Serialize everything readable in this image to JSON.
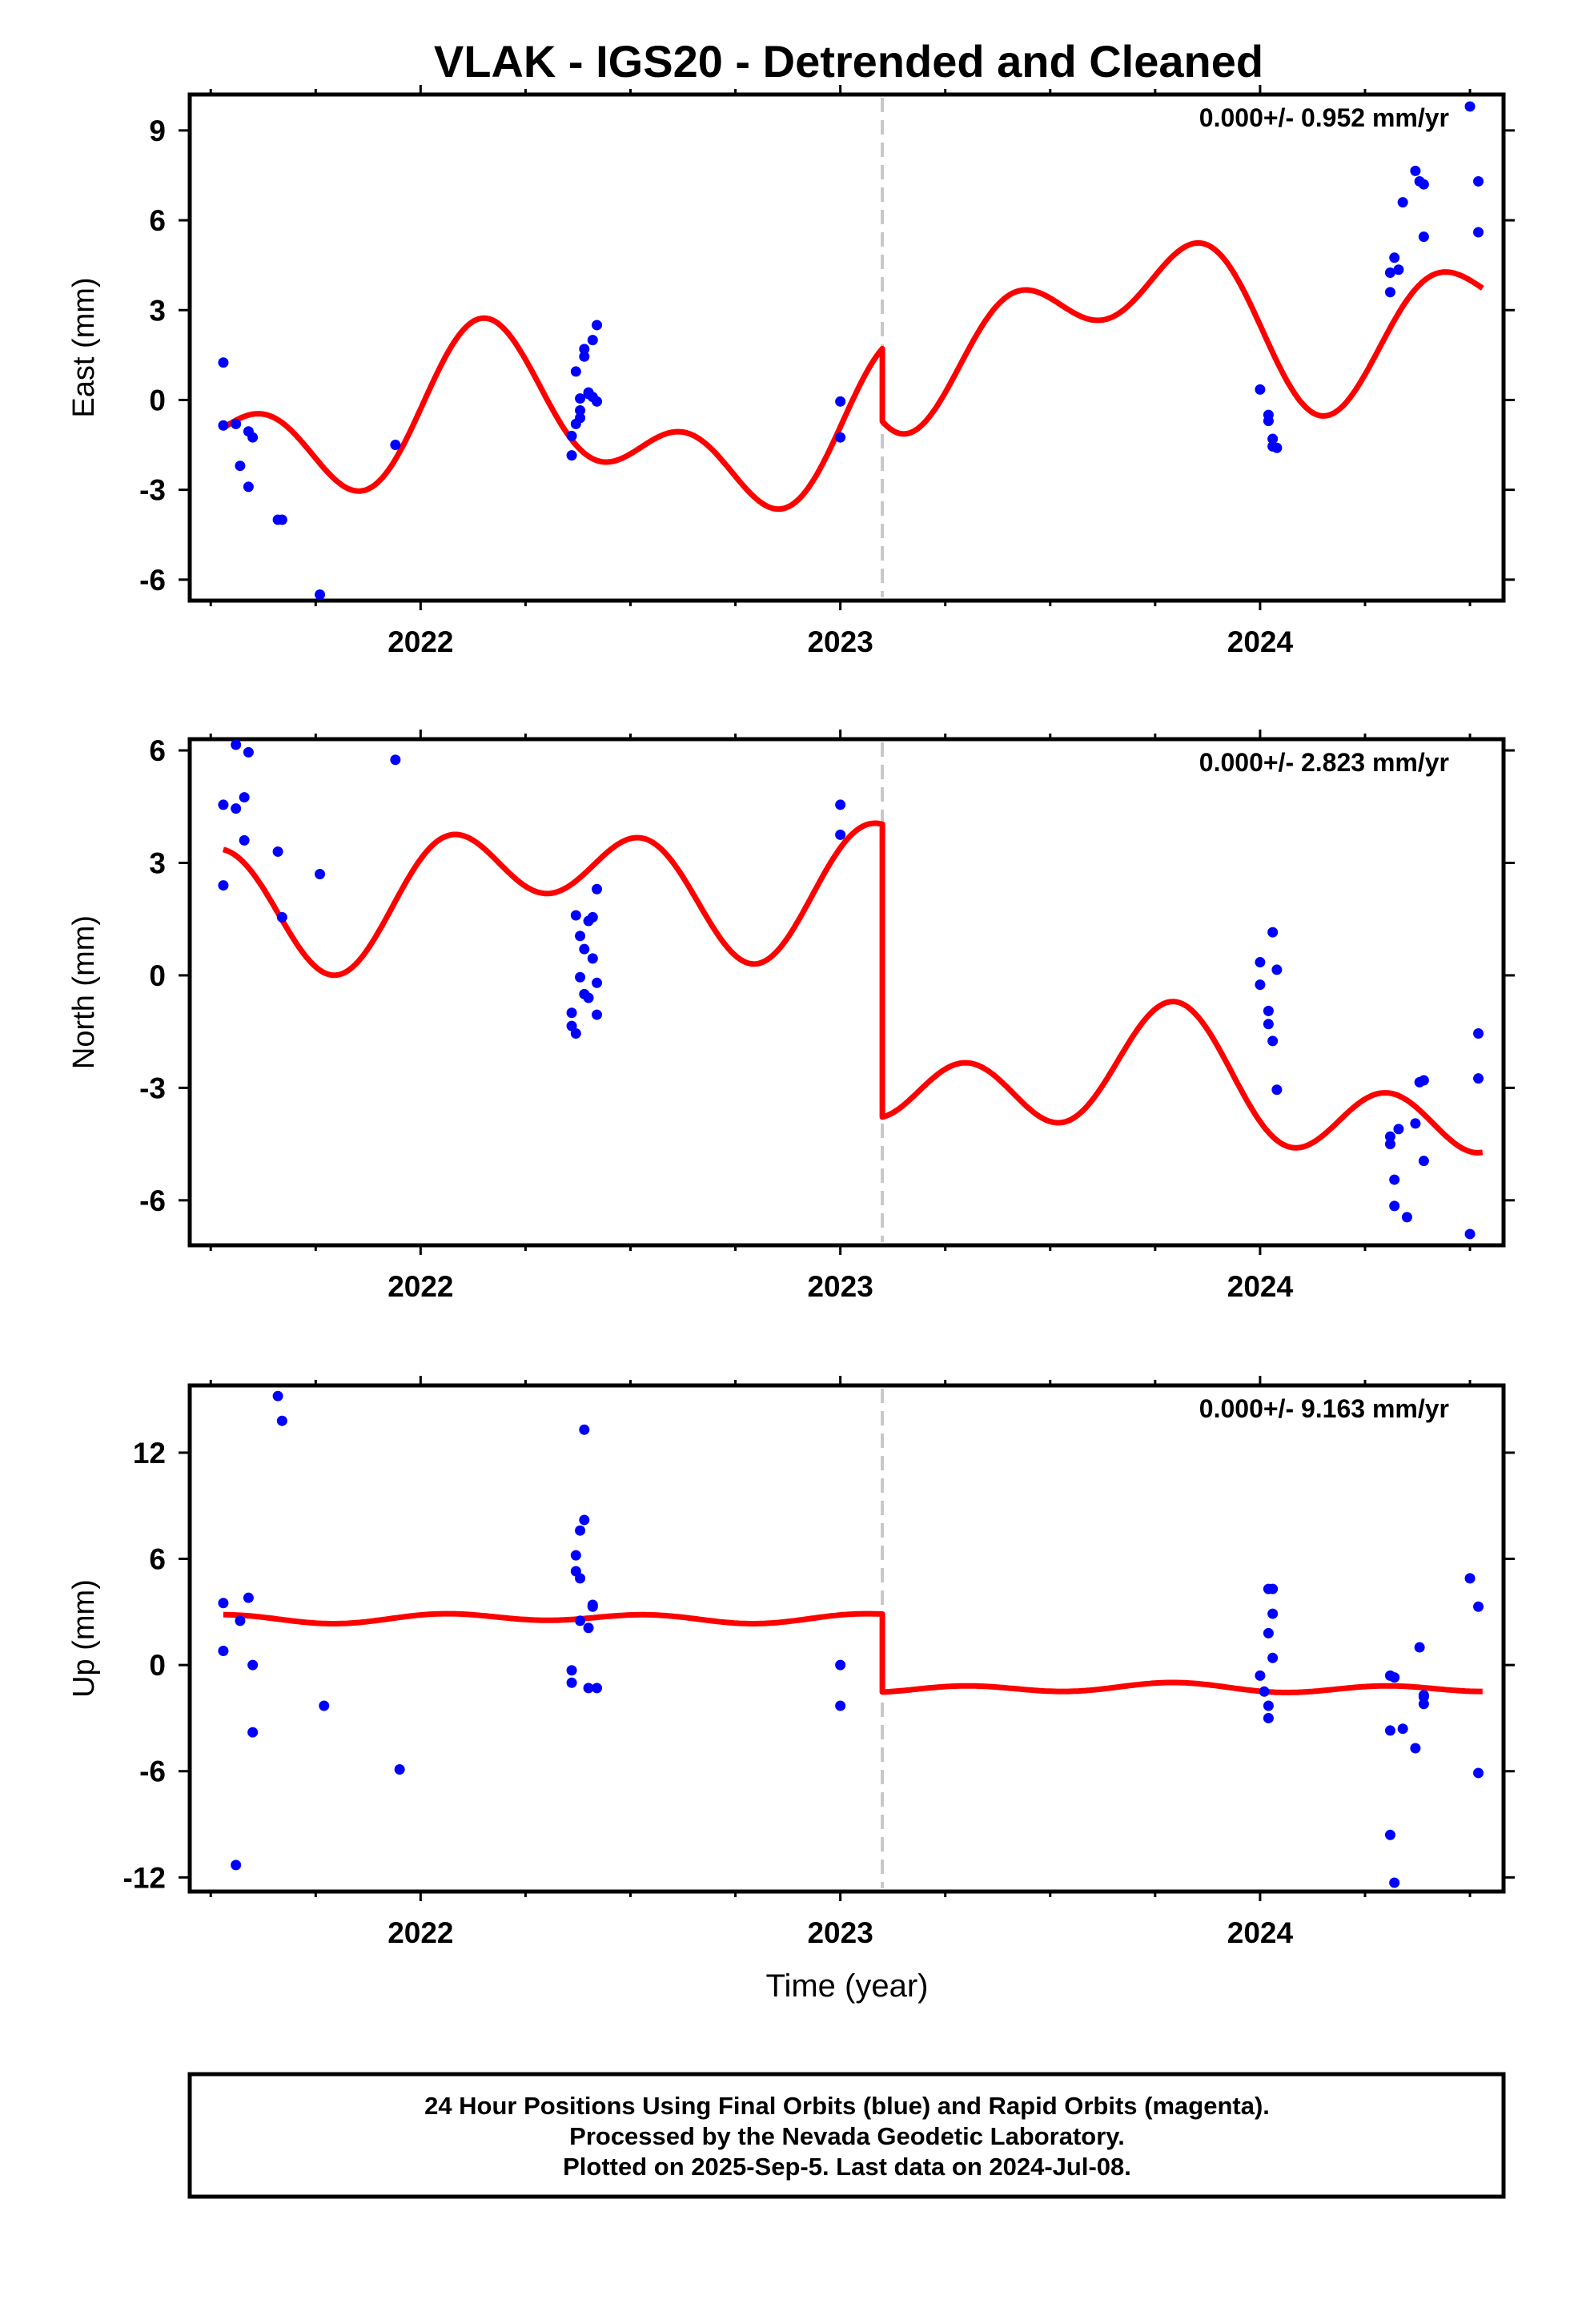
{
  "chart_data": {
    "title": "VLAK - IGS20 - Detrended and Cleaned",
    "xlabel": "Time (year)",
    "type": "scatter",
    "x_tick_labels": [
      "2022",
      "2023",
      "2024"
    ],
    "x_tick_values": [
      2022,
      2023,
      2024
    ],
    "xlim": [
      2021.45,
      2024.58
    ],
    "offset_epoch": 2023.1,
    "colors": {
      "points": "#0000ff",
      "model": "#ff0000",
      "offset_line": "#c8c8c8"
    },
    "panels": [
      {
        "name": "east",
        "ylabel": "East (mm)",
        "ylim": [
          -6.7,
          10.2
        ],
        "yticks": [
          9,
          6,
          3,
          0,
          -3,
          -6
        ],
        "rate": "0.000+/- 0.952 mm/yr",
        "points": [
          [
            2021.53,
            1.25
          ],
          [
            2021.53,
            -0.85
          ],
          [
            2021.56,
            -0.8
          ],
          [
            2021.57,
            -2.2
          ],
          [
            2021.59,
            -2.9
          ],
          [
            2021.59,
            -1.05
          ],
          [
            2021.6,
            -1.25
          ],
          [
            2021.66,
            -4.0
          ],
          [
            2021.67,
            -4.0
          ],
          [
            2021.76,
            -6.5
          ],
          [
            2021.94,
            -1.5
          ],
          [
            2022.36,
            -1.85
          ],
          [
            2022.36,
            -1.2
          ],
          [
            2022.37,
            -0.8
          ],
          [
            2022.37,
            0.95
          ],
          [
            2022.38,
            -0.35
          ],
          [
            2022.38,
            -0.6
          ],
          [
            2022.38,
            0.05
          ],
          [
            2022.39,
            1.45
          ],
          [
            2022.39,
            1.7
          ],
          [
            2022.4,
            0.2
          ],
          [
            2022.4,
            0.25
          ],
          [
            2022.41,
            2.0
          ],
          [
            2022.41,
            0.1
          ],
          [
            2022.42,
            2.5
          ],
          [
            2022.42,
            -0.05
          ],
          [
            2023.0,
            -0.05
          ],
          [
            2023.0,
            -1.25
          ],
          [
            2024.0,
            0.35
          ],
          [
            2024.02,
            -0.5
          ],
          [
            2024.02,
            -0.7
          ],
          [
            2024.03,
            -1.3
          ],
          [
            2024.03,
            -1.55
          ],
          [
            2024.04,
            -1.6
          ],
          [
            2024.31,
            3.6
          ],
          [
            2024.31,
            4.25
          ],
          [
            2024.32,
            4.75
          ],
          [
            2024.33,
            4.35
          ],
          [
            2024.34,
            6.6
          ],
          [
            2024.37,
            7.65
          ],
          [
            2024.38,
            7.3
          ],
          [
            2024.39,
            7.2
          ],
          [
            2024.39,
            5.45
          ],
          [
            2024.5,
            9.8
          ],
          [
            2024.52,
            7.3
          ],
          [
            2024.52,
            5.6
          ]
        ],
        "segments": [
          {
            "t0": 2021.53,
            "t1": 2023.1,
            "base": -1.2,
            "slope": -0.6,
            "annual": [
              1.8,
              0.6
            ],
            "semiannual": [
              1.6,
              -0.3
            ]
          },
          {
            "t0": 2023.1,
            "t1": 2024.53,
            "base": 2.2,
            "slope": 0.6,
            "annual": [
              -1.8,
              -0.6
            ],
            "semiannual": [
              -1.6,
              0.3
            ]
          }
        ]
      },
      {
        "name": "north",
        "ylabel": "North (mm)",
        "ylim": [
          -7.2,
          6.3
        ],
        "yticks": [
          6,
          3,
          0,
          -3,
          -6
        ],
        "rate": "0.000+/- 2.823 mm/yr",
        "points": [
          [
            2021.53,
            4.55
          ],
          [
            2021.53,
            2.4
          ],
          [
            2021.56,
            4.45
          ],
          [
            2021.56,
            6.15
          ],
          [
            2021.58,
            3.6
          ],
          [
            2021.58,
            4.75
          ],
          [
            2021.59,
            5.95
          ],
          [
            2021.66,
            3.3
          ],
          [
            2021.67,
            1.55
          ],
          [
            2021.76,
            2.7
          ],
          [
            2021.94,
            5.75
          ],
          [
            2022.36,
            -1.0
          ],
          [
            2022.36,
            -1.35
          ],
          [
            2022.37,
            -1.55
          ],
          [
            2022.37,
            1.6
          ],
          [
            2022.38,
            1.05
          ],
          [
            2022.38,
            -0.05
          ],
          [
            2022.39,
            0.7
          ],
          [
            2022.39,
            -0.5
          ],
          [
            2022.4,
            1.45
          ],
          [
            2022.4,
            -0.6
          ],
          [
            2022.41,
            1.55
          ],
          [
            2022.41,
            0.45
          ],
          [
            2022.42,
            -1.05
          ],
          [
            2022.42,
            -0.2
          ],
          [
            2022.42,
            2.3
          ],
          [
            2023.0,
            4.55
          ],
          [
            2023.0,
            3.75
          ],
          [
            2024.0,
            0.35
          ],
          [
            2024.0,
            -0.25
          ],
          [
            2024.02,
            -0.95
          ],
          [
            2024.02,
            -1.3
          ],
          [
            2024.03,
            1.15
          ],
          [
            2024.03,
            -1.75
          ],
          [
            2024.04,
            -3.05
          ],
          [
            2024.04,
            0.15
          ],
          [
            2024.31,
            -4.5
          ],
          [
            2024.31,
            -4.3
          ],
          [
            2024.32,
            -6.15
          ],
          [
            2024.32,
            -5.45
          ],
          [
            2024.33,
            -4.1
          ],
          [
            2024.35,
            -6.45
          ],
          [
            2024.37,
            -3.95
          ],
          [
            2024.38,
            -2.85
          ],
          [
            2024.39,
            -2.8
          ],
          [
            2024.39,
            -4.95
          ],
          [
            2024.5,
            -6.9
          ],
          [
            2024.52,
            -2.75
          ],
          [
            2024.52,
            -1.55
          ]
        ],
        "segments": [
          {
            "t0": 2021.53,
            "t1": 2023.1,
            "base": 2.6,
            "slope": 0.3,
            "annual": [
              1.0,
              -0.2
            ],
            "semiannual": [
              0.7,
              1.0
            ]
          },
          {
            "t0": 2023.1,
            "t1": 2024.53,
            "base": -2.3,
            "slope": -0.8,
            "annual": [
              -1.0,
              0.2
            ],
            "semiannual": [
              -0.7,
              -1.0
            ]
          }
        ]
      },
      {
        "name": "up",
        "ylabel": "Up (mm)",
        "ylim": [
          -12.8,
          15.8
        ],
        "yticks": [
          12,
          6,
          0,
          -6,
          -12
        ],
        "rate": "0.000+/- 9.163 mm/yr",
        "points": [
          [
            2021.53,
            3.5
          ],
          [
            2021.53,
            0.8
          ],
          [
            2021.56,
            -11.3
          ],
          [
            2021.57,
            2.5
          ],
          [
            2021.59,
            3.8
          ],
          [
            2021.6,
            0.0
          ],
          [
            2021.6,
            -3.8
          ],
          [
            2021.66,
            15.2
          ],
          [
            2021.67,
            13.8
          ],
          [
            2021.77,
            -2.3
          ],
          [
            2021.95,
            -5.9
          ],
          [
            2022.36,
            -0.3
          ],
          [
            2022.36,
            -1.0
          ],
          [
            2022.37,
            5.3
          ],
          [
            2022.37,
            6.2
          ],
          [
            2022.38,
            4.9
          ],
          [
            2022.38,
            2.5
          ],
          [
            2022.38,
            7.6
          ],
          [
            2022.39,
            8.2
          ],
          [
            2022.39,
            13.3
          ],
          [
            2022.4,
            -1.3
          ],
          [
            2022.4,
            2.1
          ],
          [
            2022.41,
            3.4
          ],
          [
            2022.41,
            3.3
          ],
          [
            2022.42,
            -1.3
          ],
          [
            2023.0,
            0.0
          ],
          [
            2023.0,
            -2.3
          ],
          [
            2024.0,
            -0.6
          ],
          [
            2024.01,
            -1.5
          ],
          [
            2024.02,
            -2.3
          ],
          [
            2024.02,
            4.3
          ],
          [
            2024.02,
            1.8
          ],
          [
            2024.02,
            -3.0
          ],
          [
            2024.03,
            4.3
          ],
          [
            2024.03,
            2.9
          ],
          [
            2024.03,
            0.4
          ],
          [
            2024.31,
            -0.6
          ],
          [
            2024.31,
            -3.7
          ],
          [
            2024.31,
            -9.6
          ],
          [
            2024.32,
            -0.7
          ],
          [
            2024.32,
            -12.3
          ],
          [
            2024.34,
            -3.6
          ],
          [
            2024.37,
            -4.7
          ],
          [
            2024.38,
            1.0
          ],
          [
            2024.39,
            -1.8
          ],
          [
            2024.39,
            -1.7
          ],
          [
            2024.39,
            -2.2
          ],
          [
            2024.5,
            4.9
          ],
          [
            2024.52,
            3.3
          ],
          [
            2024.52,
            -6.1
          ]
        ],
        "segments": [
          {
            "t0": 2021.53,
            "t1": 2023.1,
            "base": 2.65,
            "slope": 0.0,
            "annual": [
              0.1,
              0.0
            ],
            "semiannual": [
              0.12,
              0.18
            ]
          },
          {
            "t0": 2023.1,
            "t1": 2024.53,
            "base": -1.3,
            "slope": 0.0,
            "annual": [
              -0.1,
              0.0
            ],
            "semiannual": [
              -0.12,
              -0.18
            ]
          }
        ]
      }
    ]
  },
  "footer": {
    "line1": "24 Hour Positions Using Final Orbits (blue) and Rapid Orbits (magenta).",
    "line2": "Processed by the Nevada Geodetic Laboratory.",
    "line3": "Plotted on 2025-Sep-5. Last data on 2024-Jul-08."
  }
}
